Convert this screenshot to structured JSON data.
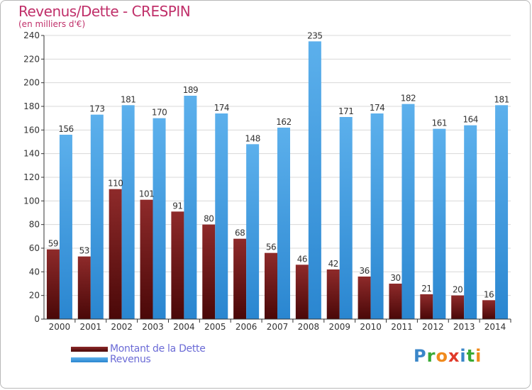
{
  "header": {
    "title": "Revenus/Dette - CRESPIN",
    "subtitle": "(en milliers d'€)"
  },
  "legend": {
    "items": [
      {
        "label": "Montant de la Dette",
        "color": "#7a1a1a"
      },
      {
        "label": "Revenus",
        "color": "#3a98e0"
      }
    ]
  },
  "logo": {
    "text": "Proxiti",
    "letters": [
      {
        "ch": "P",
        "color": "#3a86c8"
      },
      {
        "ch": "r",
        "color": "#3aaa35"
      },
      {
        "ch": "o",
        "color": "#f08a1c"
      },
      {
        "ch": "x",
        "color": "#e03a2a"
      },
      {
        "ch": "i",
        "color": "#3a86c8"
      },
      {
        "ch": "t",
        "color": "#3aaa35"
      },
      {
        "ch": "i",
        "color": "#f08a1c"
      }
    ]
  },
  "chart_data": {
    "type": "bar",
    "title": "Revenus/Dette - CRESPIN",
    "subtitle": "(en milliers d'€)",
    "categories": [
      "2000",
      "2001",
      "2002",
      "2003",
      "2004",
      "2005",
      "2006",
      "2007",
      "2008",
      "2009",
      "2010",
      "2011",
      "2012",
      "2013",
      "2014"
    ],
    "series": [
      {
        "name": "Montant de la Dette",
        "color": "#7a1a1a",
        "values": [
          59,
          53,
          110,
          101,
          91,
          80,
          68,
          56,
          46,
          42,
          36,
          30,
          21,
          20,
          16
        ]
      },
      {
        "name": "Revenus",
        "color": "#3a98e0",
        "values": [
          156,
          173,
          181,
          170,
          189,
          174,
          148,
          162,
          235,
          171,
          174,
          182,
          161,
          164,
          181
        ]
      }
    ],
    "ylim": [
      0,
      240
    ],
    "yticks": [
      0,
      20,
      40,
      60,
      80,
      100,
      120,
      140,
      160,
      180,
      200,
      220,
      240
    ],
    "grid": true,
    "legend_position": "bottom-left"
  }
}
